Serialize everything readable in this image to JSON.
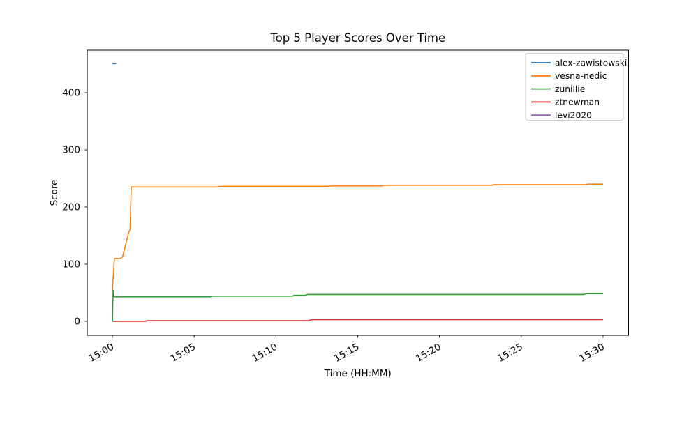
{
  "figure": {
    "background": "#ffffff",
    "spine_color": "#000000"
  },
  "chart_data": {
    "type": "line",
    "title": "Top 5 Player Scores Over Time",
    "xlabel": "Time (HH:MM)",
    "ylabel": "Score",
    "grid": false,
    "x_unit": "minutes after 15:00",
    "xlim": [
      -1.54,
      31.56
    ],
    "ylim": [
      -24.5,
      474.5
    ],
    "xticks": [
      {
        "t": 0,
        "label": "15:00"
      },
      {
        "t": 5,
        "label": "15:05"
      },
      {
        "t": 10,
        "label": "15:10"
      },
      {
        "t": 15,
        "label": "15:15"
      },
      {
        "t": 20,
        "label": "15:20"
      },
      {
        "t": 25,
        "label": "15:25"
      },
      {
        "t": 30,
        "label": "15:30"
      }
    ],
    "yticks": [
      0,
      100,
      200,
      300,
      400
    ],
    "legend": {
      "position": "upper right",
      "border_color": "#cccccc",
      "background": "#ffffff"
    },
    "series": [
      {
        "name": "alex-zawistowski",
        "color": "#1f77b4",
        "points": [
          [
            0,
            451
          ],
          [
            0.22,
            451
          ]
        ]
      },
      {
        "name": "vesna-nedic",
        "color": "#ff7f0e",
        "points": [
          [
            0,
            54
          ],
          [
            0.12,
            110
          ],
          [
            0.5,
            110
          ],
          [
            0.62,
            113
          ],
          [
            1.0,
            156
          ],
          [
            1.08,
            161
          ],
          [
            1.15,
            235
          ],
          [
            6.4,
            235
          ],
          [
            6.5,
            236
          ],
          [
            13.2,
            236
          ],
          [
            13.35,
            237
          ],
          [
            16.5,
            237
          ],
          [
            16.65,
            238
          ],
          [
            23.2,
            238
          ],
          [
            23.35,
            239
          ],
          [
            28.9,
            239
          ],
          [
            29.1,
            240
          ],
          [
            30,
            240
          ]
        ]
      },
      {
        "name": "zunillie",
        "color": "#2ca02c",
        "points": [
          [
            0,
            0
          ],
          [
            0.04,
            55
          ],
          [
            0.1,
            43
          ],
          [
            6.0,
            43
          ],
          [
            6.15,
            44
          ],
          [
            11.0,
            44
          ],
          [
            11.1,
            45.5
          ],
          [
            11.8,
            45.5
          ],
          [
            11.95,
            47
          ],
          [
            28.8,
            47
          ],
          [
            29.0,
            48.5
          ],
          [
            30,
            48.5
          ]
        ]
      },
      {
        "name": "ztnewman",
        "color": "#d62728",
        "points": [
          [
            0,
            0
          ],
          [
            2.0,
            0
          ],
          [
            2.15,
            1
          ],
          [
            12.0,
            1
          ],
          [
            12.2,
            3
          ],
          [
            30,
            3
          ]
        ]
      },
      {
        "name": "levi2020",
        "color": "#9467bd",
        "points": [
          [
            0,
            0
          ],
          [
            0.12,
            0
          ]
        ]
      }
    ]
  }
}
